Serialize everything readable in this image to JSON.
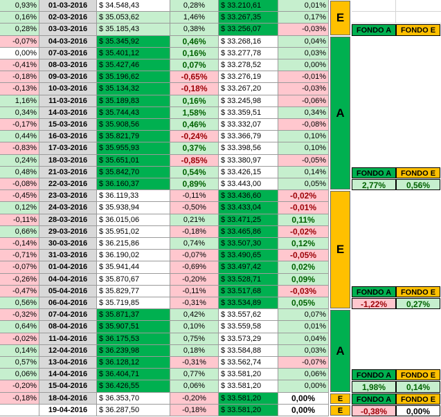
{
  "rows": [
    {
      "prev": "0,93%",
      "prev_c": "lgreen",
      "date": "01-03-2016",
      "a": "$ 34.548,43",
      "a_c": "white",
      "ap": "0,28%",
      "ap_c": "lgreen",
      "ap_big": false,
      "e": "$ 33.210,61",
      "e_c": "dgreen",
      "ep": "0,01%",
      "ep_c": "lgreen",
      "ep_big": false
    },
    {
      "prev": "0,16%",
      "prev_c": "lgreen",
      "date": "02-03-2016",
      "a": "$ 35.053,62",
      "a_c": "lgreen",
      "ap": "1,46%",
      "ap_c": "lgreen",
      "ap_big": false,
      "e": "$ 33.267,35",
      "e_c": "dgreen",
      "ep": "0,17%",
      "ep_c": "lgreen",
      "ep_big": false
    },
    {
      "prev": "0,28%",
      "prev_c": "lgreen",
      "date": "03-03-2016",
      "a": "$ 35.185,43",
      "a_c": "lgreen",
      "ap": "0,38%",
      "ap_c": "lgreen",
      "ap_big": false,
      "e": "$ 33.256,07",
      "e_c": "dgreen",
      "ep": "-0,03%",
      "ep_c": "pink",
      "ep_big": false
    },
    {
      "prev": "-0,07%",
      "prev_c": "pink",
      "date": "04-03-2016",
      "a": "$ 35.345,92",
      "a_c": "dgreen",
      "ap": "0,46%",
      "ap_c": "lgreen",
      "ap_big": true,
      "e": "$ 33.268,16",
      "e_c": "white",
      "ep": "0,04%",
      "ep_c": "lgreen",
      "ep_big": false
    },
    {
      "prev": "0,00%",
      "prev_c": "white",
      "date": "07-03-2016",
      "a": "$ 35.401,12",
      "a_c": "dgreen",
      "ap": "0,16%",
      "ap_c": "lgreen",
      "ap_big": true,
      "e": "$ 33.277,78",
      "e_c": "white",
      "ep": "0,03%",
      "ep_c": "lgreen",
      "ep_big": false
    },
    {
      "prev": "-0,41%",
      "prev_c": "pink",
      "date": "08-03-2016",
      "a": "$ 35.427,46",
      "a_c": "dgreen",
      "ap": "0,07%",
      "ap_c": "lgreen",
      "ap_big": true,
      "e": "$ 33.278,52",
      "e_c": "white",
      "ep": "0,00%",
      "ep_c": "lgreen",
      "ep_big": false
    },
    {
      "prev": "-0,18%",
      "prev_c": "pink",
      "date": "09-03-2016",
      "a": "$ 35.196,62",
      "a_c": "dgreen",
      "ap": "-0,65%",
      "ap_c": "pink",
      "ap_big": true,
      "e": "$ 33.276,19",
      "e_c": "white",
      "ep": "-0,01%",
      "ep_c": "pink",
      "ep_big": false
    },
    {
      "prev": "-0,13%",
      "prev_c": "pink",
      "date": "10-03-2016",
      "a": "$ 35.134,32",
      "a_c": "dgreen",
      "ap": "-0,18%",
      "ap_c": "pink",
      "ap_big": true,
      "e": "$ 33.267,20",
      "e_c": "white",
      "ep": "-0,03%",
      "ep_c": "pink",
      "ep_big": false
    },
    {
      "prev": "1,16%",
      "prev_c": "lgreen",
      "date": "11-03-2016",
      "a": "$ 35.189,83",
      "a_c": "dgreen",
      "ap": "0,16%",
      "ap_c": "lgreen",
      "ap_big": true,
      "e": "$ 33.245,98",
      "e_c": "white",
      "ep": "-0,06%",
      "ep_c": "pink",
      "ep_big": false
    },
    {
      "prev": "0,34%",
      "prev_c": "lgreen",
      "date": "14-03-2016",
      "a": "$ 35.744,43",
      "a_c": "dgreen",
      "ap": "1,58%",
      "ap_c": "lgreen",
      "ap_big": true,
      "e": "$ 33.359,51",
      "e_c": "white",
      "ep": "0,34%",
      "ep_c": "lgreen",
      "ep_big": false
    },
    {
      "prev": "-0,17%",
      "prev_c": "pink",
      "date": "15-03-2016",
      "a": "$ 35.908,56",
      "a_c": "dgreen",
      "ap": "0,46%",
      "ap_c": "lgreen",
      "ap_big": true,
      "e": "$ 33.332,07",
      "e_c": "white",
      "ep": "-0,08%",
      "ep_c": "pink",
      "ep_big": false
    },
    {
      "prev": "0,44%",
      "prev_c": "lgreen",
      "date": "16-03-2016",
      "a": "$ 35.821,79",
      "a_c": "dgreen",
      "ap": "-0,24%",
      "ap_c": "pink",
      "ap_big": true,
      "e": "$ 33.366,79",
      "e_c": "white",
      "ep": "0,10%",
      "ep_c": "lgreen",
      "ep_big": false
    },
    {
      "prev": "-0,83%",
      "prev_c": "pink",
      "date": "17-03-2016",
      "a": "$ 35.955,93",
      "a_c": "dgreen",
      "ap": "0,37%",
      "ap_c": "lgreen",
      "ap_big": true,
      "e": "$ 33.398,56",
      "e_c": "white",
      "ep": "0,10%",
      "ep_c": "lgreen",
      "ep_big": false
    },
    {
      "prev": "0,24%",
      "prev_c": "lgreen",
      "date": "18-03-2016",
      "a": "$ 35.651,01",
      "a_c": "dgreen",
      "ap": "-0,85%",
      "ap_c": "pink",
      "ap_big": true,
      "e": "$ 33.380,97",
      "e_c": "white",
      "ep": "-0,05%",
      "ep_c": "pink",
      "ep_big": false
    },
    {
      "prev": "0,48%",
      "prev_c": "lgreen",
      "date": "21-03-2016",
      "a": "$ 35.842,70",
      "a_c": "dgreen",
      "ap": "0,54%",
      "ap_c": "lgreen",
      "ap_big": true,
      "e": "$ 33.426,15",
      "e_c": "white",
      "ep": "0,14%",
      "ep_c": "lgreen",
      "ep_big": false
    },
    {
      "prev": "-0,08%",
      "prev_c": "pink",
      "date": "22-03-2016",
      "a": "$ 36.160,37",
      "a_c": "dgreen",
      "ap": "0,89%",
      "ap_c": "lgreen",
      "ap_big": true,
      "e": "$ 33.443,00",
      "e_c": "white",
      "ep": "0,05%",
      "ep_c": "lgreen",
      "ep_big": false
    },
    {
      "prev": "-0,45%",
      "prev_c": "pink",
      "date": "23-03-2016",
      "a": "$ 36.119,33",
      "a_c": "white",
      "ap": "-0,11%",
      "ap_c": "pink",
      "ap_big": false,
      "e": "$ 33.436,60",
      "e_c": "dgreen",
      "ep": "-0,02%",
      "ep_c": "pink",
      "ep_big": true
    },
    {
      "prev": "0,12%",
      "prev_c": "lgreen",
      "date": "24-03-2016",
      "a": "$ 35.938,94",
      "a_c": "white",
      "ap": "-0,50%",
      "ap_c": "pink",
      "ap_big": false,
      "e": "$ 33.433,04",
      "e_c": "dgreen",
      "ep": "-0,01%",
      "ep_c": "pink",
      "ep_big": true
    },
    {
      "prev": "-0,11%",
      "prev_c": "pink",
      "date": "28-03-2016",
      "a": "$ 36.015,06",
      "a_c": "white",
      "ap": "0,21%",
      "ap_c": "lgreen",
      "ap_big": false,
      "e": "$ 33.471,25",
      "e_c": "dgreen",
      "ep": "0,11%",
      "ep_c": "lgreen",
      "ep_big": true
    },
    {
      "prev": "0,66%",
      "prev_c": "lgreen",
      "date": "29-03-2016",
      "a": "$ 35.951,02",
      "a_c": "white",
      "ap": "-0,18%",
      "ap_c": "pink",
      "ap_big": false,
      "e": "$ 33.465,86",
      "e_c": "dgreen",
      "ep": "-0,02%",
      "ep_c": "pink",
      "ep_big": true
    },
    {
      "prev": "-0,14%",
      "prev_c": "pink",
      "date": "30-03-2016",
      "a": "$ 36.215,86",
      "a_c": "white",
      "ap": "0,74%",
      "ap_c": "lgreen",
      "ap_big": false,
      "e": "$ 33.507,30",
      "e_c": "dgreen",
      "ep": "0,12%",
      "ep_c": "lgreen",
      "ep_big": true
    },
    {
      "prev": "-0,71%",
      "prev_c": "pink",
      "date": "31-03-2016",
      "a": "$ 36.190,02",
      "a_c": "white",
      "ap": "-0,07%",
      "ap_c": "pink",
      "ap_big": false,
      "e": "$ 33.490,65",
      "e_c": "dgreen",
      "ep": "-0,05%",
      "ep_c": "pink",
      "ep_big": true
    },
    {
      "prev": "-0,07%",
      "prev_c": "pink",
      "date": "01-04-2016",
      "a": "$ 35.941,44",
      "a_c": "white",
      "ap": "-0,69%",
      "ap_c": "pink",
      "ap_big": false,
      "e": "$ 33.497,42",
      "e_c": "dgreen",
      "ep": "0,02%",
      "ep_c": "lgreen",
      "ep_big": true
    },
    {
      "prev": "-0,26%",
      "prev_c": "pink",
      "date": "04-04-2016",
      "a": "$ 35.870,67",
      "a_c": "white",
      "ap": "-0,20%",
      "ap_c": "pink",
      "ap_big": false,
      "e": "$ 33.528,71",
      "e_c": "dgreen",
      "ep": "0,09%",
      "ep_c": "lgreen",
      "ep_big": true
    },
    {
      "prev": "-0,47%",
      "prev_c": "pink",
      "date": "05-04-2016",
      "a": "$ 35.829,77",
      "a_c": "white",
      "ap": "-0,11%",
      "ap_c": "pink",
      "ap_big": false,
      "e": "$ 33.517,68",
      "e_c": "dgreen",
      "ep": "-0,03%",
      "ep_c": "pink",
      "ep_big": true
    },
    {
      "prev": "0,56%",
      "prev_c": "lgreen",
      "date": "06-04-2016",
      "a": "$ 35.719,85",
      "a_c": "white",
      "ap": "-0,31%",
      "ap_c": "pink",
      "ap_big": false,
      "e": "$ 33.534,89",
      "e_c": "dgreen",
      "ep": "0,05%",
      "ep_c": "lgreen",
      "ep_big": true
    },
    {
      "prev": "-0,32%",
      "prev_c": "pink",
      "date": "07-04-2016",
      "a": "$ 35.871,37",
      "a_c": "dgreen",
      "ap": "0,42%",
      "ap_c": "lgreen",
      "ap_big": false,
      "e": "$ 33.557,62",
      "e_c": "white",
      "ep": "0,07%",
      "ep_c": "lgreen",
      "ep_big": false
    },
    {
      "prev": "0,64%",
      "prev_c": "lgreen",
      "date": "08-04-2016",
      "a": "$ 35.907,51",
      "a_c": "dgreen",
      "ap": "0,10%",
      "ap_c": "lgreen",
      "ap_big": false,
      "e": "$ 33.559,58",
      "e_c": "white",
      "ep": "0,01%",
      "ep_c": "lgreen",
      "ep_big": false
    },
    {
      "prev": "-0,02%",
      "prev_c": "pink",
      "date": "11-04-2016",
      "a": "$ 36.175,53",
      "a_c": "dgreen",
      "ap": "0,75%",
      "ap_c": "lgreen",
      "ap_big": false,
      "e": "$ 33.573,29",
      "e_c": "white",
      "ep": "0,04%",
      "ep_c": "lgreen",
      "ep_big": false
    },
    {
      "prev": "0,14%",
      "prev_c": "lgreen",
      "date": "12-04-2016",
      "a": "$ 36.239,98",
      "a_c": "dgreen",
      "ap": "0,18%",
      "ap_c": "lgreen",
      "ap_big": false,
      "e": "$ 33.584,88",
      "e_c": "white",
      "ep": "0,03%",
      "ep_c": "lgreen",
      "ep_big": false
    },
    {
      "prev": "0,57%",
      "prev_c": "lgreen",
      "date": "13-04-2016",
      "a": "$ 36.128,12",
      "a_c": "dgreen",
      "ap": "-0,31%",
      "ap_c": "pink",
      "ap_big": false,
      "e": "$ 33.562,74",
      "e_c": "white",
      "ep": "-0,07%",
      "ep_c": "pink",
      "ep_big": false
    },
    {
      "prev": "0,06%",
      "prev_c": "lgreen",
      "date": "14-04-2016",
      "a": "$ 36.404,71",
      "a_c": "dgreen",
      "ap": "0,77%",
      "ap_c": "lgreen",
      "ap_big": false,
      "e": "$ 33.581,20",
      "e_c": "white",
      "ep": "0,06%",
      "ep_c": "lgreen",
      "ep_big": false
    },
    {
      "prev": "-0,20%",
      "prev_c": "pink",
      "date": "15-04-2016",
      "a": "$ 36.426,55",
      "a_c": "dgreen",
      "ap": "0,06%",
      "ap_c": "lgreen",
      "ap_big": false,
      "e": "$ 33.581,20",
      "e_c": "white",
      "ep": "0,00%",
      "ep_c": "lgreen",
      "ep_big": false
    },
    {
      "prev": "-0,18%",
      "prev_c": "pink",
      "date": "18-04-2016",
      "a": "$ 36.353,70",
      "a_c": "white",
      "ap": "-0,20%",
      "ap_c": "pink",
      "ap_big": false,
      "e": "$ 33.581,20",
      "e_c": "dgreen",
      "ep": "0,00%",
      "ep_c": "white",
      "ep_big": true
    },
    {
      "prev": "",
      "prev_c": "white",
      "date": "19-04-2016",
      "a": "$ 36.287,50",
      "a_c": "white",
      "ap": "-0,18%",
      "ap_c": "pink",
      "ap_big": false,
      "e": "$ 33.581,20",
      "e_c": "dgreen",
      "ep": "0,00%",
      "ep_c": "white",
      "ep_big": true
    }
  ],
  "blocks": [
    {
      "letter": "E",
      "color": "#ffc000",
      "start": 0,
      "end": 2
    },
    {
      "letter": "A",
      "color": "#00b050",
      "start": 3,
      "end": 15
    },
    {
      "letter": "E",
      "color": "#ffc000",
      "start": 16,
      "end": 25
    },
    {
      "letter": "A",
      "color": "#00b050",
      "start": 26,
      "end": 32
    },
    {
      "letter": "E",
      "color": "#ffc000",
      "start": 33,
      "end": 33
    },
    {
      "letter": "E",
      "color": "#ffc000",
      "start": 34,
      "end": 34
    }
  ],
  "headers": [
    {
      "row": 2,
      "a": "FONDO A",
      "e": "FONDO E"
    },
    {
      "row": 14,
      "a": "FONDO A",
      "e": "FONDO E"
    },
    {
      "row": 24,
      "a": "FONDO A",
      "e": "FONDO E"
    },
    {
      "row": 31,
      "a": "FONDO A",
      "e": "FONDO E"
    },
    {
      "row": 33,
      "a": "FONDO A",
      "e": "FONDO E"
    }
  ],
  "summaries": [
    {
      "row": 15,
      "a": "2,77%",
      "a_c": "lgreen",
      "a_txt": "posc",
      "e": "0,56%",
      "e_c": "lgreen",
      "e_txt": "posc"
    },
    {
      "row": 25,
      "a": "-1,22%",
      "a_c": "pink",
      "a_txt": "negc",
      "e": "0,27%",
      "e_c": "lgreen",
      "e_txt": "posc"
    },
    {
      "row": 32,
      "a": "1,98%",
      "a_c": "lgreen",
      "a_txt": "posc",
      "e": "0,14%",
      "e_c": "lgreen",
      "e_txt": "posc"
    },
    {
      "row": 34,
      "a": "-0,38%",
      "a_c": "pink",
      "a_txt": "negc",
      "e": "0,00%",
      "e_c": "white",
      "e_txt": "blk"
    }
  ],
  "colors": {
    "fondo_a": "#00b050",
    "fondo_e": "#ffc000",
    "positive_bg": "#c6efce",
    "negative_bg": "#ffc7ce",
    "date_bg": "#d9d9d9"
  }
}
